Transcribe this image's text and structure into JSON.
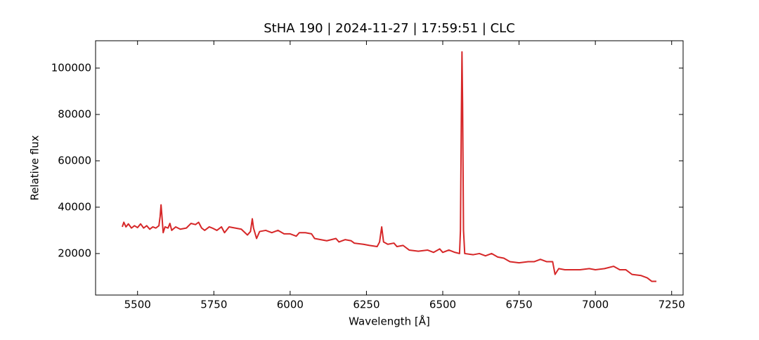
{
  "chart_data": {
    "type": "line",
    "title": "StHA 190 | 2024-11-27 | 17:59:51 | CLC",
    "xlabel": "Wavelength [Å]",
    "ylabel": "Relative flux",
    "xlim": [
      5362.5,
      7287.5
    ],
    "ylim": [
      2100,
      111800
    ],
    "xticks": [
      5500,
      5750,
      6000,
      6250,
      6500,
      6750,
      7000,
      7250
    ],
    "yticks": [
      20000,
      40000,
      60000,
      80000,
      100000
    ],
    "grid": false,
    "x": [
      5450,
      5455,
      5462,
      5470,
      5480,
      5490,
      5500,
      5510,
      5520,
      5530,
      5540,
      5550,
      5560,
      5570,
      5574,
      5577,
      5580,
      5584,
      5590,
      5600,
      5606,
      5612,
      5625,
      5640,
      5660,
      5675,
      5690,
      5700,
      5710,
      5720,
      5735,
      5745,
      5760,
      5775,
      5785,
      5800,
      5820,
      5840,
      5860,
      5870,
      5876,
      5880,
      5890,
      5900,
      5920,
      5940,
      5960,
      5980,
      6000,
      6020,
      6030,
      6050,
      6070,
      6080,
      6100,
      6120,
      6150,
      6160,
      6180,
      6200,
      6210,
      6240,
      6260,
      6285,
      6293,
      6300,
      6306,
      6320,
      6340,
      6350,
      6370,
      6390,
      6420,
      6450,
      6470,
      6490,
      6500,
      6520,
      6540,
      6555,
      6558,
      6561,
      6563,
      6565,
      6568,
      6572,
      6600,
      6620,
      6640,
      6660,
      6680,
      6700,
      6720,
      6750,
      6780,
      6800,
      6820,
      6840,
      6860,
      6868,
      6880,
      6900,
      6950,
      6980,
      7000,
      7030,
      7060,
      7080,
      7100,
      7120,
      7150,
      7170,
      7185,
      7200
    ],
    "series": [
      {
        "color": "#d62728",
        "values": [
          31500,
          33500,
          31500,
          32800,
          31000,
          32000,
          31200,
          32800,
          31000,
          32000,
          30500,
          31500,
          31000,
          32000,
          36000,
          41000,
          36000,
          29000,
          31500,
          31000,
          33000,
          30000,
          31500,
          30500,
          31000,
          33000,
          32500,
          33500,
          31000,
          30000,
          31500,
          31000,
          30000,
          31500,
          29000,
          31500,
          31000,
          30500,
          28000,
          29500,
          35000,
          31000,
          26500,
          29500,
          30000,
          29000,
          30000,
          28500,
          28500,
          27500,
          29000,
          29000,
          28500,
          26500,
          26000,
          25500,
          26500,
          25000,
          26000,
          25500,
          24500,
          24000,
          23500,
          23000,
          25000,
          31500,
          25000,
          24000,
          24500,
          23000,
          23500,
          21500,
          21000,
          21500,
          20500,
          22000,
          20500,
          21500,
          20500,
          20000,
          30000,
          80000,
          107000,
          85000,
          30000,
          20000,
          19500,
          20000,
          19000,
          20000,
          18500,
          18000,
          16500,
          16000,
          16500,
          16500,
          17500,
          16500,
          16500,
          11000,
          13500,
          13000,
          13000,
          13500,
          13000,
          13500,
          14500,
          13000,
          13000,
          11000,
          10500,
          9500,
          8000,
          8000
        ]
      }
    ]
  }
}
